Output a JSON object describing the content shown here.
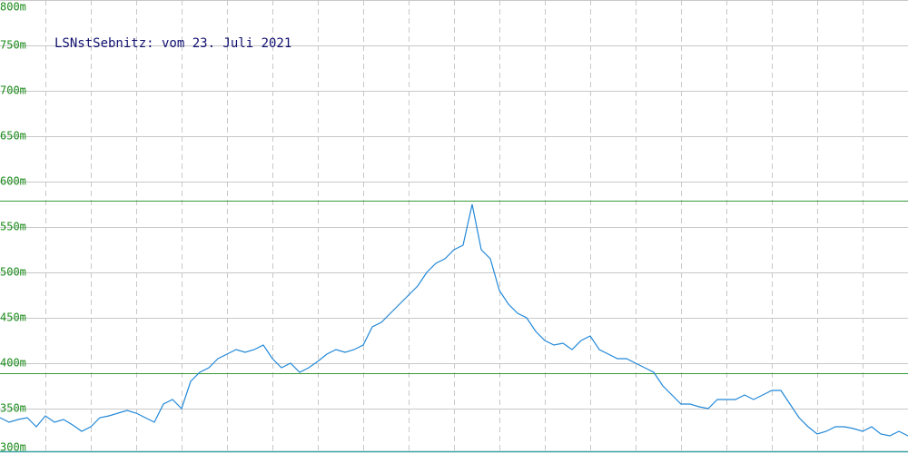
{
  "chart_data": {
    "type": "line",
    "title": "LSNstSebnitz: vom 23. Juli 2021",
    "series": [
      {
        "color": "#2288d8",
        "values": [
          340,
          335,
          338,
          340,
          330,
          342,
          335,
          338,
          332,
          325,
          330,
          340,
          342,
          345,
          348,
          345,
          340,
          335,
          355,
          360,
          350,
          380,
          390,
          395,
          405,
          410,
          415,
          412,
          415,
          420,
          405,
          395,
          400,
          390,
          395,
          402,
          410,
          415,
          412,
          415,
          420,
          440,
          445,
          455,
          465,
          475,
          485,
          500,
          510,
          515,
          525,
          530,
          575,
          525,
          515,
          480,
          465,
          455,
          450,
          435,
          425,
          420,
          422,
          415,
          425,
          430,
          415,
          410,
          405,
          405,
          400,
          395,
          390,
          375,
          365,
          355,
          355,
          352,
          350,
          360,
          360,
          360,
          365,
          360,
          365,
          370,
          370,
          355,
          340,
          330,
          322,
          325,
          330,
          330,
          328,
          325,
          330,
          322,
          320,
          325,
          320
        ]
      }
    ],
    "ylim": [
      300,
      800
    ],
    "yticks": [
      {
        "value": 300,
        "label": "300m"
      },
      {
        "value": 350,
        "label": "350m"
      },
      {
        "value": 400,
        "label": "400m"
      },
      {
        "value": 450,
        "label": "450m"
      },
      {
        "value": 500,
        "label": "500m"
      },
      {
        "value": 550,
        "label": "550m"
      },
      {
        "value": 600,
        "label": "600m"
      },
      {
        "value": 650,
        "label": "650m"
      },
      {
        "value": 700,
        "label": "700m"
      },
      {
        "value": 750,
        "label": "750m"
      },
      {
        "value": 800,
        "label": "800m"
      }
    ],
    "reference_lines": [
      579,
      389
    ],
    "reference_color": "#3a9a3a",
    "grid": true
  }
}
